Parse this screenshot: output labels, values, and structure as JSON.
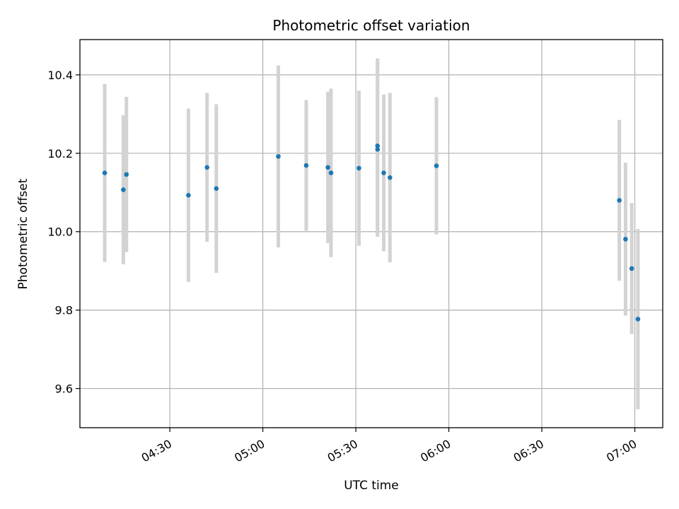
{
  "chart_data": {
    "type": "scatter",
    "title": "Photometric offset variation",
    "xlabel": "UTC time",
    "ylabel": "Photometric offset",
    "x_unit": "minutes since 04:00 UTC",
    "xlim": [
      "04:01",
      "07:09"
    ],
    "ylim": [
      9.5,
      10.49
    ],
    "grid": true,
    "x_ticks": [
      "04:30",
      "05:00",
      "05:30",
      "06:00",
      "06:30",
      "07:00"
    ],
    "y_ticks": [
      "9.6",
      "9.8",
      "10.0",
      "10.2",
      "10.4"
    ],
    "colors": {
      "point": "#1f77b4",
      "errorbar": "#d3d3d3",
      "grid": "#b0b0b0"
    },
    "points": [
      {
        "x": "04:09",
        "y": 10.15,
        "yerr": 0.227
      },
      {
        "x": "04:15",
        "y": 10.107,
        "yerr": 0.19
      },
      {
        "x": "04:16",
        "y": 10.146,
        "yerr": 0.198
      },
      {
        "x": "04:36",
        "y": 10.093,
        "yerr": 0.221
      },
      {
        "x": "04:42",
        "y": 10.164,
        "yerr": 0.19
      },
      {
        "x": "04:45",
        "y": 10.11,
        "yerr": 0.215
      },
      {
        "x": "05:05",
        "y": 10.192,
        "yerr": 0.232
      },
      {
        "x": "05:14",
        "y": 10.169,
        "yerr": 0.167
      },
      {
        "x": "05:21",
        "y": 10.164,
        "yerr": 0.193
      },
      {
        "x": "05:22",
        "y": 10.15,
        "yerr": 0.215
      },
      {
        "x": "05:31",
        "y": 10.162,
        "yerr": 0.198
      },
      {
        "x": "05:37",
        "y": 10.219,
        "yerr": 0.223
      },
      {
        "x": "05:37",
        "y": 10.21,
        "yerr": 0.223
      },
      {
        "x": "05:39",
        "y": 10.15,
        "yerr": 0.2
      },
      {
        "x": "05:41",
        "y": 10.138,
        "yerr": 0.216
      },
      {
        "x": "05:56",
        "y": 10.168,
        "yerr": 0.175
      },
      {
        "x": "06:55",
        "y": 10.08,
        "yerr": 0.205
      },
      {
        "x": "06:57",
        "y": 9.981,
        "yerr": 0.195
      },
      {
        "x": "06:59",
        "y": 9.906,
        "yerr": 0.167
      },
      {
        "x": "07:01",
        "y": 9.777,
        "yerr": 0.23
      }
    ]
  }
}
